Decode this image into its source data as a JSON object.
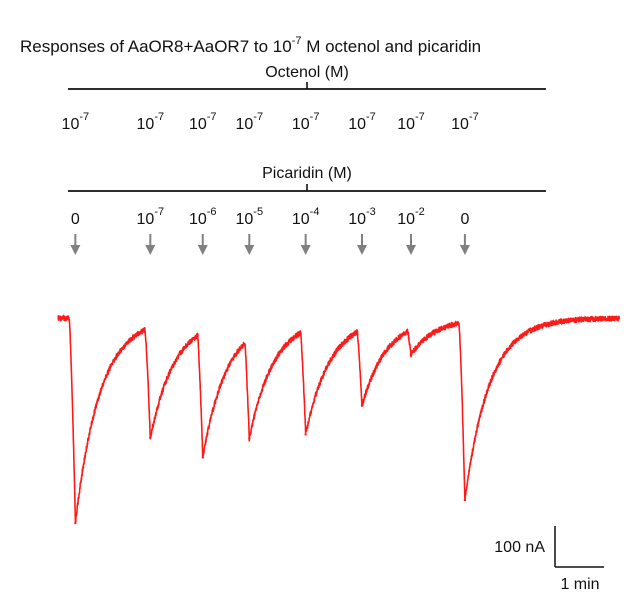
{
  "title": {
    "prefix": "Responses of AaOR8+AaOR7 to ",
    "base": "10",
    "exp": "-7",
    "suffix": " M octenol and picaridin"
  },
  "octenol": {
    "label": "Octenol (M)",
    "concentrations": [
      {
        "base": "10",
        "exp": "-7"
      },
      {
        "base": "10",
        "exp": "-7"
      },
      {
        "base": "10",
        "exp": "-7"
      },
      {
        "base": "10",
        "exp": "-7"
      },
      {
        "base": "10",
        "exp": "-7"
      },
      {
        "base": "10",
        "exp": "-7"
      },
      {
        "base": "10",
        "exp": "-7"
      },
      {
        "base": "10",
        "exp": "-7"
      }
    ]
  },
  "picaridin": {
    "label": "Picaridin (M)",
    "concentrations": [
      {
        "base": "0",
        "exp": ""
      },
      {
        "base": "10",
        "exp": "-7"
      },
      {
        "base": "10",
        "exp": "-6"
      },
      {
        "base": "10",
        "exp": "-5"
      },
      {
        "base": "10",
        "exp": "-4"
      },
      {
        "base": "10",
        "exp": "-3"
      },
      {
        "base": "10",
        "exp": "-2"
      },
      {
        "base": "0",
        "exp": ""
      }
    ]
  },
  "colors": {
    "trace": "#ff1a1a",
    "arrow": "#808080",
    "axis": "#111111"
  },
  "scale_bar": {
    "current_label": "100 nA",
    "time_label": "1 min"
  },
  "chart_data": {
    "type": "line",
    "title": "Responses of AaOR8+AaOR7 to 10^-7 M octenol and picaridin",
    "xlabel": "",
    "ylabel": "",
    "x_unit": "min",
    "y_unit": "nA",
    "scale_bar": {
      "x": 1,
      "y": 100
    },
    "series": [
      {
        "responses": [
          {
            "picaridin": "0",
            "octenol": "10^-7",
            "time_min": 0.15,
            "amplitude_nA": -250
          },
          {
            "picaridin": "10^-7",
            "octenol": "10^-7",
            "time_min": 1.68,
            "amplitude_nA": -146
          },
          {
            "picaridin": "10^-6",
            "octenol": "10^-7",
            "time_min": 2.75,
            "amplitude_nA": -170
          },
          {
            "picaridin": "10^-5",
            "octenol": "10^-7",
            "time_min": 3.7,
            "amplitude_nA": -147
          },
          {
            "picaridin": "10^-4",
            "octenol": "10^-7",
            "time_min": 4.85,
            "amplitude_nA": -142
          },
          {
            "picaridin": "10^-3",
            "octenol": "10^-7",
            "time_min": 6.0,
            "amplitude_nA": -107
          },
          {
            "picaridin": "10^-2",
            "octenol": "10^-7",
            "time_min": 7.0,
            "amplitude_nA": -45
          },
          {
            "picaridin": "0",
            "octenol": "10^-7",
            "time_min": 8.1,
            "amplitude_nA": -222
          }
        ]
      }
    ]
  }
}
